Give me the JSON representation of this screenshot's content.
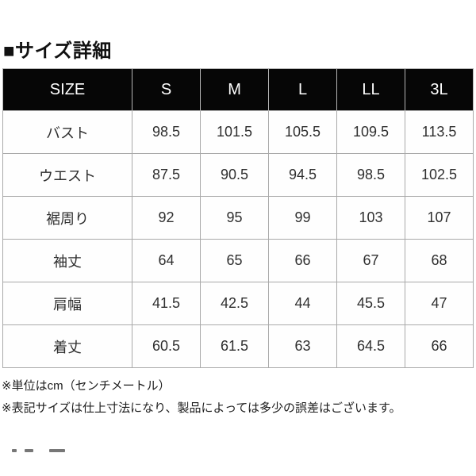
{
  "section": {
    "title": "■サイズ詳細"
  },
  "table": {
    "header": [
      "SIZE",
      "S",
      "M",
      "L",
      "LL",
      "3L"
    ],
    "rows": [
      {
        "label": "バスト",
        "values": [
          "98.5",
          "101.5",
          "105.5",
          "109.5",
          "113.5"
        ]
      },
      {
        "label": "ウエスト",
        "values": [
          "87.5",
          "90.5",
          "94.5",
          "98.5",
          "102.5"
        ]
      },
      {
        "label": "裾周り",
        "values": [
          "92",
          "95",
          "99",
          "103",
          "107"
        ]
      },
      {
        "label": "袖丈",
        "values": [
          "64",
          "65",
          "66",
          "67",
          "68"
        ]
      },
      {
        "label": "肩幅",
        "values": [
          "41.5",
          "42.5",
          "44",
          "45.5",
          "47"
        ]
      },
      {
        "label": "着丈",
        "values": [
          "60.5",
          "61.5",
          "63",
          "64.5",
          "66"
        ]
      }
    ]
  },
  "notes": [
    "※単位はcm（センチメートル）",
    "※表記サイズは仕上寸法になり、製品によっては多少の誤差はございます。"
  ],
  "unit": "cm",
  "colors": {
    "header_bg": "#060606",
    "header_text": "#ffffff",
    "border": "#a9a9a9",
    "body_text": "#2f2f2f",
    "page_bg": "#ffffff"
  }
}
